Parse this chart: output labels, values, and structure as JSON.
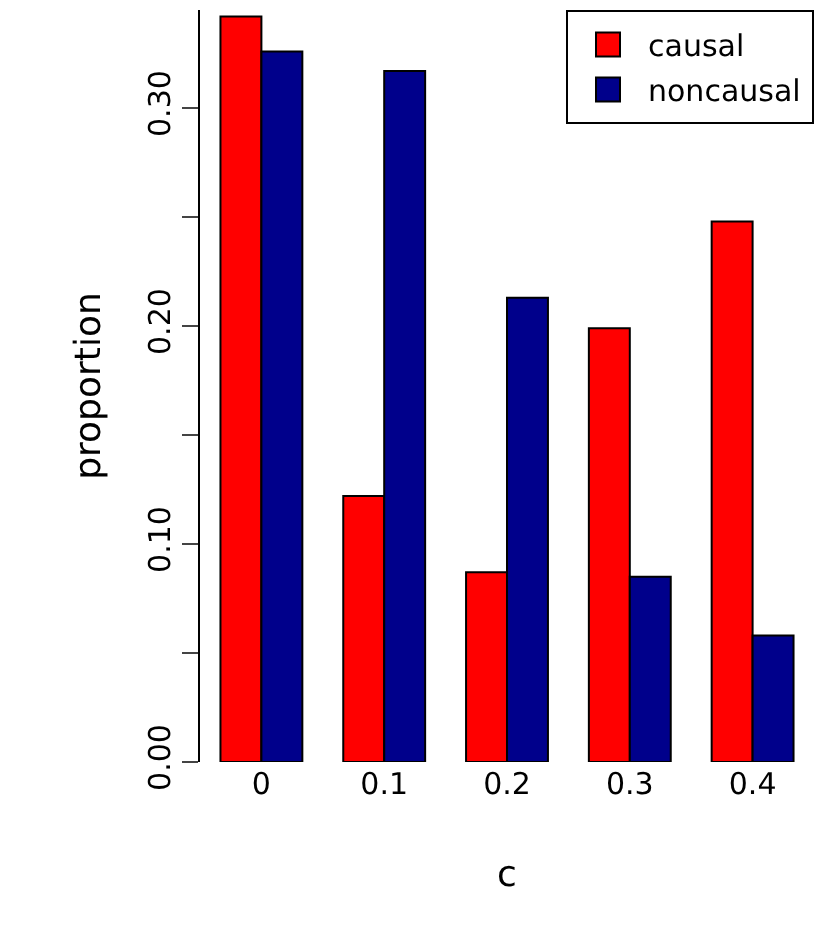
{
  "chart_data": {
    "type": "bar",
    "xlabel": "c",
    "ylabel": "proportion",
    "categories": [
      "0",
      "0.1",
      "0.2",
      "0.3",
      "0.4"
    ],
    "series": [
      {
        "name": "causal",
        "color": "#ff0000",
        "values": [
          0.342,
          0.122,
          0.087,
          0.199,
          0.248
        ]
      },
      {
        "name": "noncausal",
        "color": "#00008b",
        "values": [
          0.326,
          0.317,
          0.213,
          0.085,
          0.058
        ]
      }
    ],
    "ylim": [
      0,
      0.345
    ],
    "yticks": [
      {
        "value": 0,
        "label": "0.00"
      },
      {
        "value": 0.05,
        "label": null
      },
      {
        "value": 0.1,
        "label": "0.10"
      },
      {
        "value": 0.15,
        "label": null
      },
      {
        "value": 0.2,
        "label": "0.20"
      },
      {
        "value": 0.25,
        "label": null
      },
      {
        "value": 0.3,
        "label": "0.30"
      }
    ],
    "legend": "top right"
  }
}
